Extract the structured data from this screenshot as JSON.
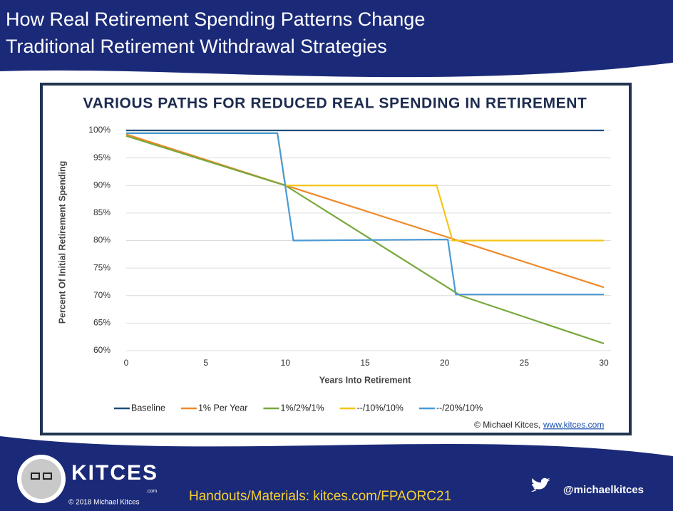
{
  "slide": {
    "title_lines": [
      "How Real Retirement Spending Patterns Change",
      "Traditional Retirement Withdrawal Strategies"
    ]
  },
  "chart_data": {
    "type": "line",
    "title": "VARIOUS PATHS FOR REDUCED REAL SPENDING IN RETIREMENT",
    "x_label": "Years Into Retirement",
    "y_label": "Percent Of Initial Retirement Spending",
    "xlim": [
      0,
      30
    ],
    "xticks": [
      0,
      5,
      10,
      15,
      20,
      25,
      30
    ],
    "ylim": [
      60,
      100
    ],
    "yticks": [
      {
        "value": 60,
        "label": "60%"
      },
      {
        "value": 65,
        "label": "65%"
      },
      {
        "value": 70,
        "label": "70%"
      },
      {
        "value": 75,
        "label": "75%"
      },
      {
        "value": 80,
        "label": "80%"
      },
      {
        "value": 85,
        "label": "85%"
      },
      {
        "value": 90,
        "label": "90%"
      },
      {
        "value": 95,
        "label": "95%"
      },
      {
        "value": 100,
        "label": "100%"
      }
    ],
    "grid": true,
    "legend": "bottom",
    "series": [
      {
        "name": "Baseline",
        "color": "#1f4e79",
        "x": [
          0,
          30
        ],
        "values": [
          100,
          100
        ]
      },
      {
        "name": "1% Per Year",
        "color": "#f0892a",
        "x": [
          0,
          30
        ],
        "values": [
          99.3,
          71.5
        ]
      },
      {
        "name": "1%/2%/1%",
        "color": "#77a83a",
        "x": [
          0,
          10,
          21,
          30
        ],
        "values": [
          99,
          90,
          70,
          61.3
        ]
      },
      {
        "name": "--/10%/10%",
        "color": "#f5c518",
        "x": [
          0,
          9.5,
          10,
          19.5,
          20.5,
          30
        ],
        "values": [
          99.5,
          99.5,
          90,
          90,
          80,
          80
        ]
      },
      {
        "name": "--/20%/10%",
        "color": "#4a9ad6",
        "x": [
          0,
          9.5,
          10.5,
          20.2,
          20.7,
          30
        ],
        "values": [
          99.5,
          99.5,
          80,
          80.2,
          70.2,
          70.2
        ]
      }
    ],
    "credit": "© Michael Kitces,",
    "credit_link": "www.kitces.com"
  },
  "footer": {
    "brand": "KITCES",
    "brand_suffix": ".com",
    "copyright": "© 2018 Michael Kitces",
    "handouts": "Handouts/Materials: kitces.com/FPAORC21",
    "twitter": "@michaelkitces"
  }
}
